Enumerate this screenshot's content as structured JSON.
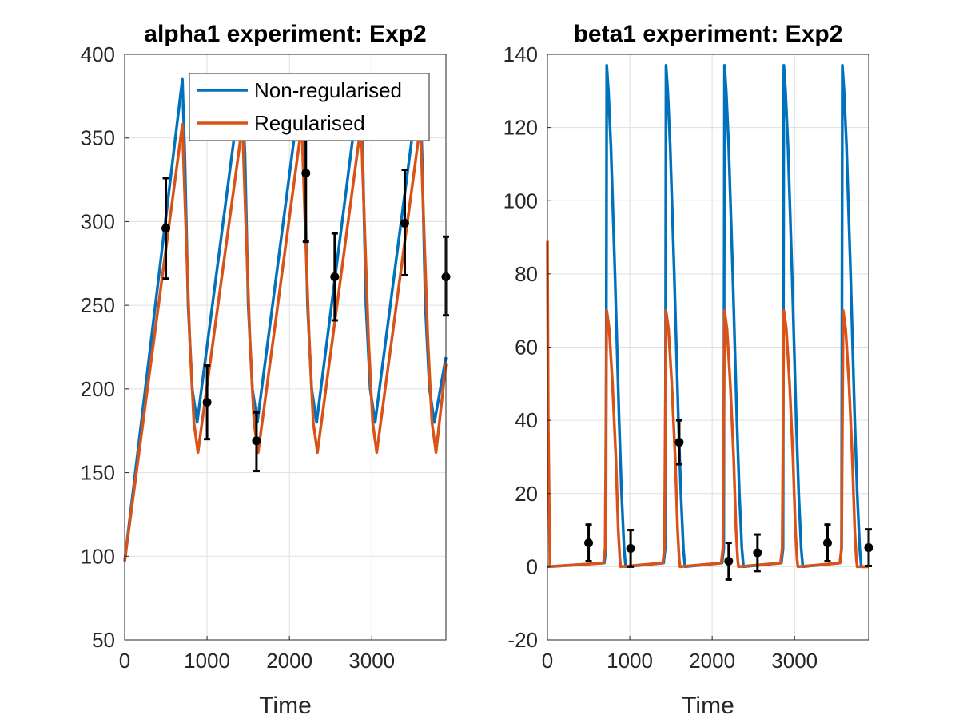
{
  "colors": {
    "non_regularised": "#0072BD",
    "regularised": "#D95319",
    "data_points": "#000000",
    "grid": "#DFDFDF",
    "axis": "#262626"
  },
  "legend": {
    "non_regularised": "Non-regularised",
    "regularised": "Regularised",
    "placement": "top-right of left panel"
  },
  "chart_data": [
    {
      "type": "line",
      "title": "alpha1 experiment: Exp2",
      "xlabel": "Time",
      "ylabel": "",
      "xlim": [
        0,
        3900
      ],
      "ylim": [
        50,
        400
      ],
      "grid": true,
      "xticks": [
        0,
        1000,
        2000,
        3000
      ],
      "xtick_labels": [
        "0",
        "1000",
        "2000",
        "3000"
      ],
      "yticks": [
        50,
        100,
        150,
        200,
        250,
        300,
        350,
        400
      ],
      "ytick_labels": [
        "50",
        "100",
        "150",
        "200",
        "250",
        "300",
        "350",
        "400"
      ],
      "series": [
        {
          "name": "Non-regularised",
          "x": [
            0,
            700,
            730,
            770,
            820,
            880,
            1420,
            1460,
            1500,
            1550,
            1610,
            2150,
            2180,
            2220,
            2270,
            2330,
            2860,
            2890,
            2930,
            2980,
            3040,
            3580,
            3610,
            3650,
            3700,
            3760,
            3900
          ],
          "y": [
            97,
            385,
            340,
            250,
            200,
            180,
            385,
            340,
            250,
            200,
            180,
            385,
            340,
            250,
            200,
            180,
            385,
            340,
            250,
            200,
            180,
            385,
            340,
            250,
            200,
            180,
            219
          ]
        },
        {
          "name": "Regularised",
          "x": [
            0,
            700,
            740,
            790,
            840,
            890,
            1430,
            1470,
            1520,
            1570,
            1620,
            2150,
            2190,
            2240,
            2290,
            2340,
            2870,
            2910,
            2960,
            3010,
            3060,
            3590,
            3630,
            3680,
            3730,
            3780,
            3900
          ],
          "y": [
            97,
            358,
            300,
            230,
            180,
            162,
            358,
            300,
            230,
            180,
            162,
            358,
            300,
            230,
            180,
            162,
            358,
            300,
            230,
            180,
            162,
            358,
            300,
            230,
            180,
            162,
            215
          ]
        }
      ],
      "data_points": [
        {
          "x": 500,
          "y": 296,
          "err_low": 30,
          "err_high": 30
        },
        {
          "x": 1000,
          "y": 192,
          "err_low": 22,
          "err_high": 22
        },
        {
          "x": 1600,
          "y": 169,
          "err_low": 18,
          "err_high": 17
        },
        {
          "x": 2200,
          "y": 329,
          "err_low": 41,
          "err_high": 41
        },
        {
          "x": 2550,
          "y": 267,
          "err_low": 26,
          "err_high": 26
        },
        {
          "x": 3400,
          "y": 299,
          "err_low": 31,
          "err_high": 32
        },
        {
          "x": 3900,
          "y": 267,
          "err_low": 23,
          "err_high": 24
        }
      ]
    },
    {
      "type": "line",
      "title": "beta1 experiment: Exp2",
      "xlabel": "Time",
      "ylabel": "",
      "xlim": [
        0,
        3900
      ],
      "ylim": [
        -20,
        140
      ],
      "grid": true,
      "xticks": [
        0,
        1000,
        2000,
        3000
      ],
      "xtick_labels": [
        "0",
        "1000",
        "2000",
        "3000"
      ],
      "yticks": [
        -20,
        0,
        20,
        40,
        60,
        80,
        100,
        120,
        140
      ],
      "ytick_labels": [
        "-20",
        "0",
        "20",
        "40",
        "60",
        "80",
        "100",
        "120",
        "140"
      ],
      "series": [
        {
          "name": "Non-regularised",
          "x": [
            0,
            690,
            710,
            720,
            740,
            770,
            820,
            870,
            900,
            930,
            950,
            1410,
            1430,
            1440,
            1460,
            1490,
            1540,
            1590,
            1620,
            1650,
            1670,
            2120,
            2140,
            2150,
            2170,
            2200,
            2250,
            2300,
            2330,
            2360,
            2380,
            2840,
            2860,
            2870,
            2890,
            2920,
            2970,
            3020,
            3050,
            3080,
            3100,
            3550,
            3570,
            3580,
            3600,
            3630,
            3680,
            3730,
            3760,
            3790,
            3810,
            3900
          ],
          "y": [
            0,
            1,
            5,
            137,
            130,
            115,
            80,
            40,
            20,
            5,
            0,
            1,
            5,
            137,
            130,
            115,
            80,
            40,
            20,
            5,
            0,
            1,
            5,
            137,
            130,
            115,
            80,
            40,
            20,
            5,
            0,
            1,
            5,
            137,
            130,
            115,
            80,
            40,
            20,
            5,
            0,
            1,
            5,
            137,
            130,
            115,
            80,
            40,
            20,
            5,
            0,
            0
          ]
        },
        {
          "name": "Regularised",
          "x": [
            0,
            10,
            30,
            680,
            700,
            720,
            750,
            790,
            830,
            860,
            880,
            890,
            1400,
            1420,
            1440,
            1470,
            1510,
            1550,
            1580,
            1600,
            1610,
            2110,
            2130,
            2150,
            2180,
            2220,
            2260,
            2290,
            2310,
            2320,
            2830,
            2850,
            2870,
            2900,
            2940,
            2980,
            3010,
            3030,
            3040,
            3550,
            3570,
            3590,
            3620,
            3660,
            3700,
            3730,
            3750,
            3760,
            3900
          ],
          "y": [
            89,
            40,
            0,
            1,
            5,
            70,
            65,
            50,
            30,
            10,
            2,
            0,
            1,
            5,
            70,
            65,
            50,
            30,
            10,
            2,
            0,
            1,
            5,
            70,
            65,
            50,
            30,
            10,
            2,
            0,
            1,
            5,
            70,
            65,
            50,
            30,
            10,
            2,
            0,
            1,
            5,
            70,
            65,
            50,
            30,
            10,
            2,
            0,
            0
          ]
        }
      ],
      "data_points": [
        {
          "x": 500,
          "y": 6.5,
          "err_low": 5,
          "err_high": 5
        },
        {
          "x": 1010,
          "y": 5,
          "err_low": 5,
          "err_high": 5
        },
        {
          "x": 1600,
          "y": 34,
          "err_low": 6,
          "err_high": 6
        },
        {
          "x": 2200,
          "y": 1.5,
          "err_low": 5,
          "err_high": 5
        },
        {
          "x": 2550,
          "y": 3.8,
          "err_low": 5,
          "err_high": 5
        },
        {
          "x": 3400,
          "y": 6.5,
          "err_low": 5,
          "err_high": 5
        },
        {
          "x": 3900,
          "y": 5.2,
          "err_low": 5,
          "err_high": 5
        }
      ]
    }
  ]
}
